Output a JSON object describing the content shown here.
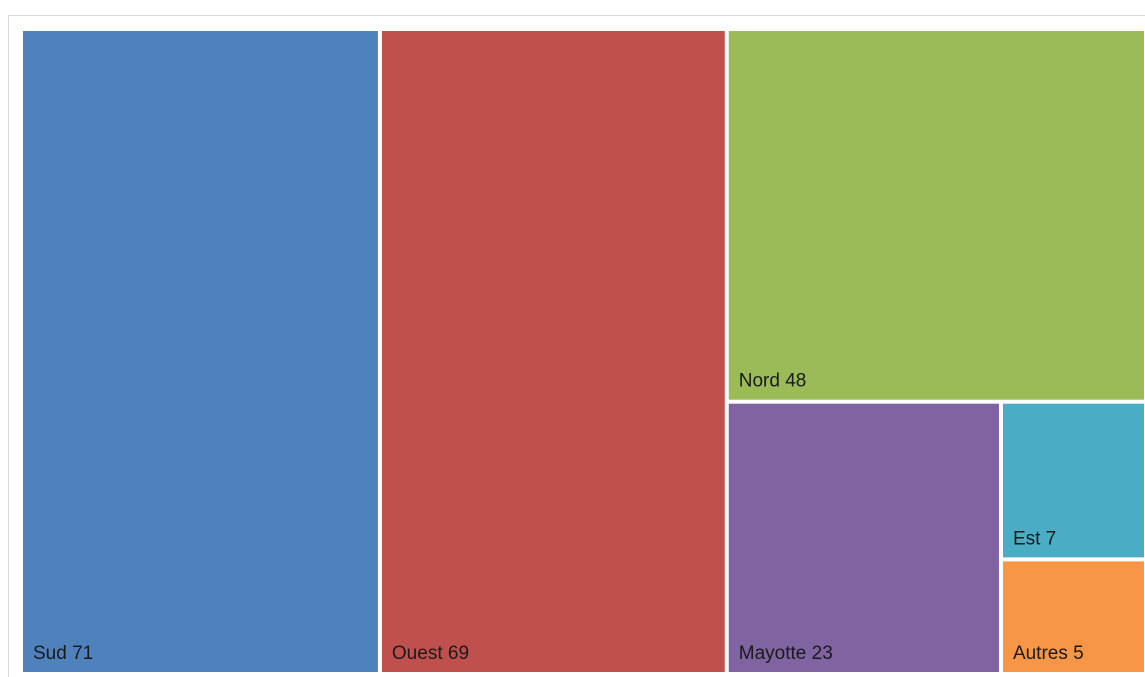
{
  "chart_data": {
    "type": "treemap",
    "title": "",
    "items": [
      {
        "name": "Sud",
        "value": 71,
        "label": "Sud 71",
        "color": "#4f81bd"
      },
      {
        "name": "Ouest",
        "value": 69,
        "label": "Ouest 69",
        "color": "#c0504d"
      },
      {
        "name": "Nord",
        "value": 48,
        "label": "Nord 48",
        "color": "#9bbb59"
      },
      {
        "name": "Mayotte",
        "value": 23,
        "label": "Mayotte 23",
        "color": "#8064a2"
      },
      {
        "name": "Est",
        "value": 7,
        "label": "Est 7",
        "color": "#4bacc6"
      },
      {
        "name": "Autres",
        "value": 5,
        "label": "Autres 5",
        "color": "#f79646"
      }
    ]
  }
}
